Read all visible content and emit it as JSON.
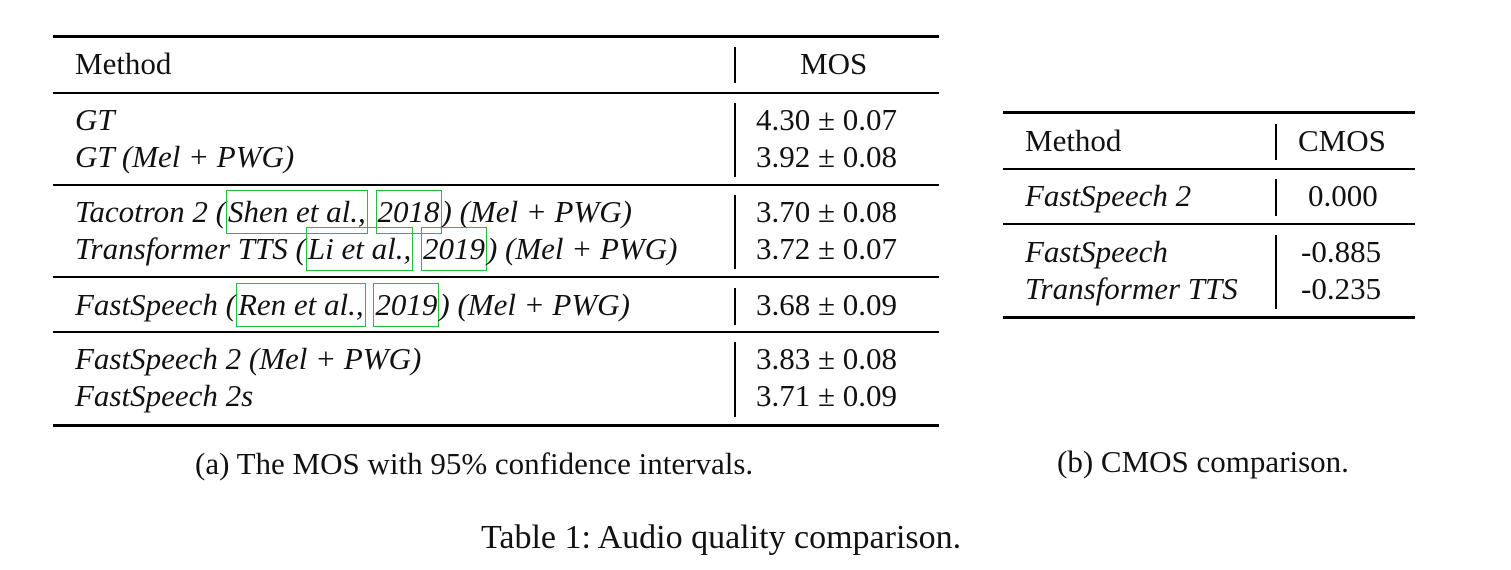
{
  "table_a": {
    "header": {
      "method": "Method",
      "score": "MOS"
    },
    "groups": [
      {
        "rows": [
          {
            "method": "GT",
            "score": "4.30 ± 0.07"
          },
          {
            "method": "GT (Mel + PWG)",
            "score": "3.92 ± 0.08"
          }
        ]
      },
      {
        "rows": [
          {
            "method_prefix": "Tacotron 2 (",
            "cite_author": "Shen et al.,",
            "cite_sep": " ",
            "cite_year": "2018",
            "method_suffix": ") (Mel + PWG)",
            "score": "3.70 ± 0.08"
          },
          {
            "method_prefix": "Transformer TTS (",
            "cite_author": "Li et al.,",
            "cite_sep": " ",
            "cite_year": "2019",
            "method_suffix": ") (Mel + PWG)",
            "score": "3.72 ± 0.07"
          }
        ]
      },
      {
        "rows": [
          {
            "method_prefix": "FastSpeech (",
            "cite_author": "Ren et al.,",
            "cite_sep": " ",
            "cite_year": "2019",
            "method_suffix": ") (Mel + PWG)",
            "score": "3.68 ± 0.09"
          }
        ]
      },
      {
        "rows": [
          {
            "method": "FastSpeech 2 (Mel + PWG)",
            "score": "3.83 ± 0.08"
          },
          {
            "method": "FastSpeech 2s",
            "score": "3.71 ± 0.09"
          }
        ]
      }
    ],
    "caption": "(a) The MOS with 95% confidence intervals."
  },
  "table_b": {
    "header": {
      "method": "Method",
      "score": "CMOS"
    },
    "groups": [
      {
        "rows": [
          {
            "method": "FastSpeech 2",
            "score": "0.000"
          }
        ]
      },
      {
        "rows": [
          {
            "method": "FastSpeech",
            "score": "-0.885"
          },
          {
            "method": "Transformer TTS",
            "score": "-0.235"
          }
        ]
      }
    ],
    "caption": "(b) CMOS comparison."
  },
  "table_caption": "Table 1: Audio quality comparison.",
  "colors": {
    "citation_box": "#22c03a",
    "rule": "#000000"
  }
}
